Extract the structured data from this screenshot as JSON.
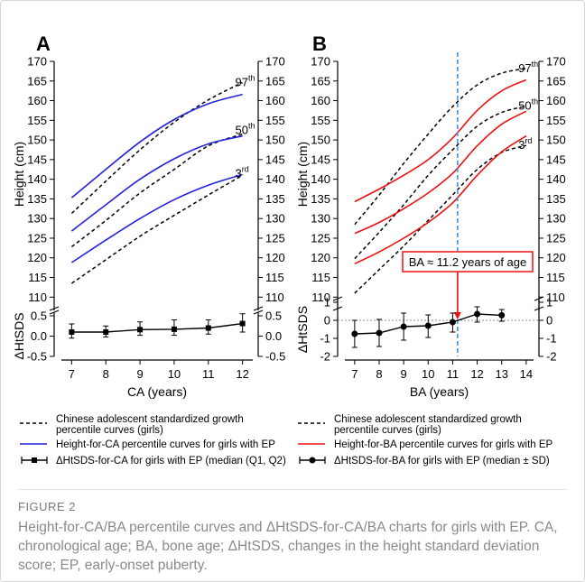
{
  "figure_label": "FIGURE 2",
  "caption": "Height-for-CA/BA percentile curves and ΔHtSDS-for-CA/BA charts for girls with EP. CA, chronological age; BA, bone age; ΔHtSDS, changes in the height standard deviation score; EP, early-onset puberty.",
  "colors": {
    "reference": "#000000",
    "ca_curves": "#2222dd",
    "ba_curves": "#ee1111",
    "ba_marker": "#3b8fd9",
    "annotation": "#ee1111"
  },
  "chart_data": [
    {
      "panel": "A",
      "type": "line",
      "xlabel": "CA (years)",
      "ylabel_top": "Height (cm)",
      "ylabel_bottom": "ΔHtSDS",
      "x_ticks": [
        7,
        8,
        9,
        10,
        11,
        12
      ],
      "xlim": [
        6.7,
        12.3
      ],
      "top_ylim": [
        108,
        170
      ],
      "top_yticks": [
        110,
        115,
        120,
        125,
        130,
        135,
        140,
        145,
        150,
        155,
        160,
        165,
        170
      ],
      "bottom_ylim": [
        -0.5,
        0.5
      ],
      "bottom_yticks": [
        "0.5",
        "0.0",
        "-0.5"
      ],
      "bottom_yticks_num": [
        0.5,
        0.0,
        -0.5
      ],
      "percentile_labels": [
        {
          "text": "97",
          "sup": "th",
          "x": 12.05,
          "y": 164.6
        },
        {
          "text": "50",
          "sup": "th",
          "x": 12.05,
          "y": 152.4
        },
        {
          "text": "3",
          "sup": "rd",
          "x": 12.05,
          "y": 141.4
        }
      ],
      "reference_curves": [
        {
          "name": "97th",
          "x": [
            7,
            8,
            9,
            10,
            11,
            12
          ],
          "y": [
            131.3,
            139.5,
            147.5,
            154.5,
            160.2,
            164.6
          ]
        },
        {
          "name": "50th",
          "x": [
            7,
            8,
            9,
            10,
            11,
            12
          ],
          "y": [
            122.8,
            129.5,
            136.5,
            142.5,
            148.5,
            151.5
          ]
        },
        {
          "name": "3rd",
          "x": [
            7,
            8,
            9,
            10,
            11,
            12
          ],
          "y": [
            113.5,
            119.5,
            125.5,
            130.8,
            136.0,
            141.0
          ]
        }
      ],
      "ep_curves": [
        {
          "name": "97th",
          "x": [
            7,
            8,
            9,
            10,
            11,
            12
          ],
          "y": [
            135.3,
            142.5,
            149.5,
            155.2,
            159.2,
            161.6
          ]
        },
        {
          "name": "50th",
          "x": [
            7,
            8,
            9,
            10,
            11,
            12
          ],
          "y": [
            126.8,
            133.5,
            140.0,
            145.2,
            149.0,
            151.0
          ]
        },
        {
          "name": "3rd",
          "x": [
            7,
            8,
            9,
            10,
            11,
            12
          ],
          "y": [
            118.8,
            124.5,
            130.0,
            134.8,
            138.5,
            141.2
          ]
        }
      ],
      "delta_series": {
        "x": [
          7,
          8,
          9,
          10,
          11,
          12
        ],
        "median": [
          0.1,
          0.1,
          0.16,
          0.17,
          0.2,
          0.31
        ],
        "low": [
          -0.05,
          -0.02,
          0.02,
          0.02,
          0.05,
          0.1
        ],
        "high": [
          0.3,
          0.25,
          0.35,
          0.4,
          0.4,
          0.55
        ]
      }
    },
    {
      "panel": "B",
      "type": "line",
      "xlabel": "BA (years)",
      "ylabel_top": "Height (cm)",
      "ylabel_bottom": "ΔHtSDS",
      "x_ticks": [
        7,
        8,
        9,
        10,
        11,
        12,
        13,
        14
      ],
      "xlim": [
        6.6,
        14.3
      ],
      "top_ylim": [
        108,
        170
      ],
      "top_yticks": [
        110,
        115,
        120,
        125,
        130,
        135,
        140,
        145,
        150,
        155,
        160,
        165,
        170
      ],
      "bottom_ylim": [
        -2,
        1
      ],
      "bottom_yticks": [
        "1",
        "0",
        "-1",
        "-2"
      ],
      "bottom_yticks_num": [
        1,
        0,
        -1,
        -2
      ],
      "percentile_labels": [
        {
          "text": "97",
          "sup": "th",
          "x": 14.05,
          "y": 168.2
        },
        {
          "text": "50",
          "sup": "th",
          "x": 14.05,
          "y": 158.6
        },
        {
          "text": "3",
          "sup": "rd",
          "x": 14.05,
          "y": 148.6
        }
      ],
      "reference_curves": [
        {
          "name": "97th",
          "x": [
            7,
            8,
            9,
            10,
            11,
            12,
            13,
            14
          ],
          "y": [
            128.5,
            136.0,
            144.0,
            151.5,
            158.5,
            164.0,
            167.0,
            168.2
          ]
        },
        {
          "name": "50th",
          "x": [
            7,
            8,
            9,
            10,
            11,
            12,
            13,
            14
          ],
          "y": [
            119.8,
            126.5,
            133.5,
            141.0,
            147.5,
            153.5,
            157.0,
            158.6
          ]
        },
        {
          "name": "3rd",
          "x": [
            7,
            8,
            9,
            10,
            11,
            12,
            13,
            14
          ],
          "y": [
            111.0,
            117.0,
            123.0,
            129.5,
            136.0,
            142.5,
            146.8,
            148.6
          ]
        }
      ],
      "ep_curves": [
        {
          "name": "97th",
          "x": [
            7,
            8,
            9,
            10,
            11,
            12,
            13,
            14
          ],
          "y": [
            134.3,
            137.5,
            141.0,
            145.0,
            150.5,
            157.5,
            162.5,
            165.3
          ]
        },
        {
          "name": "50th",
          "x": [
            7,
            8,
            9,
            10,
            11,
            12,
            13,
            14
          ],
          "y": [
            126.2,
            129.0,
            132.5,
            136.5,
            141.5,
            148.5,
            154.0,
            157.3
          ]
        },
        {
          "name": "3rd",
          "x": [
            7,
            8,
            9,
            10,
            11,
            12,
            13,
            14
          ],
          "y": [
            118.5,
            121.5,
            125.0,
            129.0,
            134.0,
            141.0,
            147.0,
            151.0
          ]
        }
      ],
      "delta_series": {
        "x": [
          7,
          8,
          9,
          10,
          11,
          12,
          13
        ],
        "median": [
          -0.75,
          -0.7,
          -0.35,
          -0.3,
          -0.1,
          0.35,
          0.28
        ],
        "low": [
          -1.5,
          -1.45,
          -1.1,
          -0.95,
          -0.65,
          -0.1,
          -0.05
        ],
        "high": [
          0.0,
          0.05,
          0.4,
          0.3,
          0.4,
          0.75,
          0.6
        ]
      },
      "marker": {
        "x": 11.2,
        "label": "BA ≈ 11.2 years of age"
      }
    }
  ],
  "legends": {
    "left": [
      {
        "type": "dashed",
        "text_lines": [
          "Chinese adolescent standardized growth",
          "percentile curves (girls)"
        ]
      },
      {
        "type": "solid-blue",
        "text_lines": [
          "Height-for-CA percentile curves for girls with EP"
        ]
      },
      {
        "type": "errorbar-square",
        "text_lines": [
          "ΔHtSDS-for-CA for girls with EP (median (Q1, Q2)"
        ]
      }
    ],
    "right": [
      {
        "type": "dashed",
        "text_lines": [
          "Chinese adolescent standardized growth",
          "percentile curves (girls)"
        ]
      },
      {
        "type": "solid-red",
        "text_lines": [
          "Height-for-BA percentile curves for girls with EP"
        ]
      },
      {
        "type": "errorbar-circle",
        "text_lines": [
          "ΔHtSDS-for-BA for girls with EP (median ± SD)"
        ]
      }
    ]
  }
}
